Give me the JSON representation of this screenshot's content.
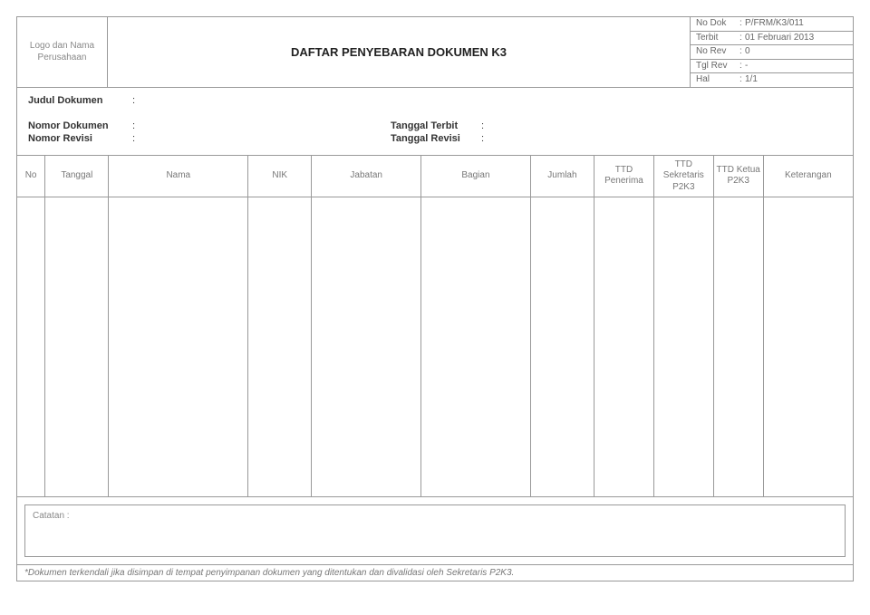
{
  "header": {
    "logo_text": "Logo dan Nama Perusahaan",
    "title": "DAFTAR PENYEBARAN DOKUMEN K3",
    "meta": [
      {
        "label": "No Dok",
        "value": "P/FRM/K3/011"
      },
      {
        "label": "Terbit",
        "value": "01 Februari 2013"
      },
      {
        "label": "No Rev",
        "value": "0"
      },
      {
        "label": "Tgl Rev",
        "value": "-"
      },
      {
        "label": "Hal",
        "value": "1/1"
      }
    ]
  },
  "info": {
    "judul_label": "Judul Dokumen",
    "judul_value": "",
    "nomor_dokumen_label": "Nomor Dokumen",
    "nomor_dokumen_value": "",
    "nomor_revisi_label": "Nomor Revisi",
    "nomor_revisi_value": "",
    "tanggal_terbit_label": "Tanggal Terbit",
    "tanggal_terbit_value": "",
    "tanggal_revisi_label": "Tanggal Revisi",
    "tanggal_revisi_value": ""
  },
  "table": {
    "columns": [
      {
        "label": "No",
        "width": 28
      },
      {
        "label": "Tanggal",
        "width": 64
      },
      {
        "label": "Nama",
        "width": 140
      },
      {
        "label": "NIK",
        "width": 64
      },
      {
        "label": "Jabatan",
        "width": 110
      },
      {
        "label": "Bagian",
        "width": 110
      },
      {
        "label": "Jumlah",
        "width": 64
      },
      {
        "label": "TTD Penerima",
        "width": 60
      },
      {
        "label": "TTD Sekretaris P2K3",
        "width": 60
      },
      {
        "label": "TTD Ketua P2K3",
        "width": 50
      },
      {
        "label": "Keterangan",
        "width": 90
      }
    ],
    "rows": []
  },
  "notes": {
    "label": "Catatan :",
    "text": ""
  },
  "footer": {
    "text": "*Dokumen terkendali jika disimpan di tempat penyimpanan dokumen yang ditentukan dan divalidasi oleh Sekretaris P2K3."
  },
  "colors": {
    "border": "#999999",
    "text": "#333333",
    "muted": "#777777",
    "background": "#ffffff"
  }
}
